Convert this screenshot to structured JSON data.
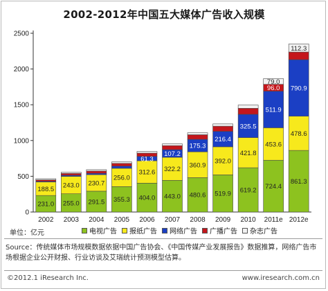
{
  "title": "2002-2012年中国五大媒体广告收入规模",
  "unit_label": "单位：亿元",
  "source_text": "Source：传统媒体市场规模数据依据中国广告协会、《中国传媒产业发展报告》数据推算，网络广告市场根据企业公开财报、行业访谈及艾瑞统计预测模型估算。",
  "footer": {
    "copyright": "©2012.1 iResearch Inc.",
    "website": "www.iresearch.com.cn"
  },
  "colors": {
    "tv": "#8dc21f",
    "newspaper": "#f7e91c",
    "internet": "#1b3fc4",
    "radio": "#c4161c",
    "magazine": "#f2f2f2"
  },
  "chart_data": {
    "type": "bar",
    "stacked": true,
    "title": "2002-2012年中国五大媒体广告收入规模",
    "ylabel": "单位：亿元",
    "ylim": [
      0,
      2500
    ],
    "yticks": [
      0,
      500,
      1000,
      1500,
      2000,
      2500
    ],
    "grid": false,
    "legend_position": "bottom",
    "categories": [
      "2002",
      "2003",
      "2004",
      "2005",
      "2006",
      "2007",
      "2008",
      "2009",
      "2010",
      "2011e",
      "2012e"
    ],
    "series": [
      {
        "name": "电视广告",
        "color": "#8dc21f",
        "values": [
          231.0,
          255.0,
          291.5,
          355.3,
          404.0,
          443.0,
          480.6,
          519.9,
          619.2,
          724.4,
          861.3
        ]
      },
      {
        "name": "报纸广告",
        "color": "#f7e91c",
        "values": [
          188.5,
          243.0,
          230.7,
          256.0,
          312.6,
          322.2,
          360.9,
          392.0,
          421.8,
          453.6,
          478.6
        ]
      },
      {
        "name": "网络广告",
        "color": "#1b3fc4",
        "values": [
          null,
          null,
          null,
          null,
          61.3,
          107.2,
          175.3,
          216.4,
          325.5,
          511.9,
          790.9
        ]
      },
      {
        "name": "广播广告",
        "color": "#c4161c",
        "values": [
          null,
          null,
          null,
          null,
          null,
          null,
          null,
          null,
          null,
          96.0,
          null
        ]
      },
      {
        "name": "杂志广告",
        "color": "#f2f2f2",
        "values": [
          null,
          null,
          null,
          null,
          null,
          null,
          null,
          null,
          null,
          79.0,
          112.3
        ]
      }
    ],
    "estimated_unlabeled": {
      "internet": [
        10,
        16,
        19,
        31,
        null,
        null,
        null,
        null,
        null,
        null,
        null
      ],
      "radio": [
        20,
        26,
        32,
        38,
        46,
        56,
        64,
        72,
        84,
        null,
        107
      ],
      "magazine": [
        16,
        17,
        19,
        21,
        23,
        25,
        28,
        32,
        46,
        null,
        null
      ]
    }
  }
}
